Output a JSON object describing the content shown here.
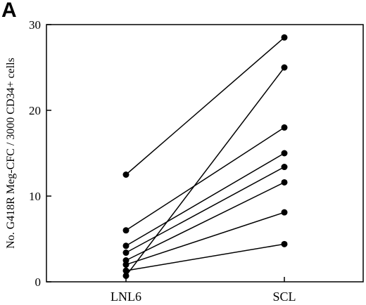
{
  "panel_label": "A",
  "chart_data": {
    "type": "line",
    "categories": [
      "LNL6",
      "SCL"
    ],
    "ylabel": "No. G418R Meg-CFC / 3000 CD34+ cells",
    "ylim": [
      0,
      30
    ],
    "yticks": [
      0,
      10,
      20,
      30
    ],
    "grid": false,
    "series": [
      {
        "values": [
          12.5,
          28.5
        ]
      },
      {
        "values": [
          6.0,
          18.0
        ]
      },
      {
        "values": [
          4.2,
          15.0
        ]
      },
      {
        "values": [
          3.4,
          13.4
        ]
      },
      {
        "values": [
          2.5,
          11.6
        ]
      },
      {
        "values": [
          2.0,
          8.1
        ]
      },
      {
        "values": [
          1.3,
          4.4
        ]
      },
      {
        "values": [
          0.7,
          25.0
        ]
      }
    ]
  }
}
